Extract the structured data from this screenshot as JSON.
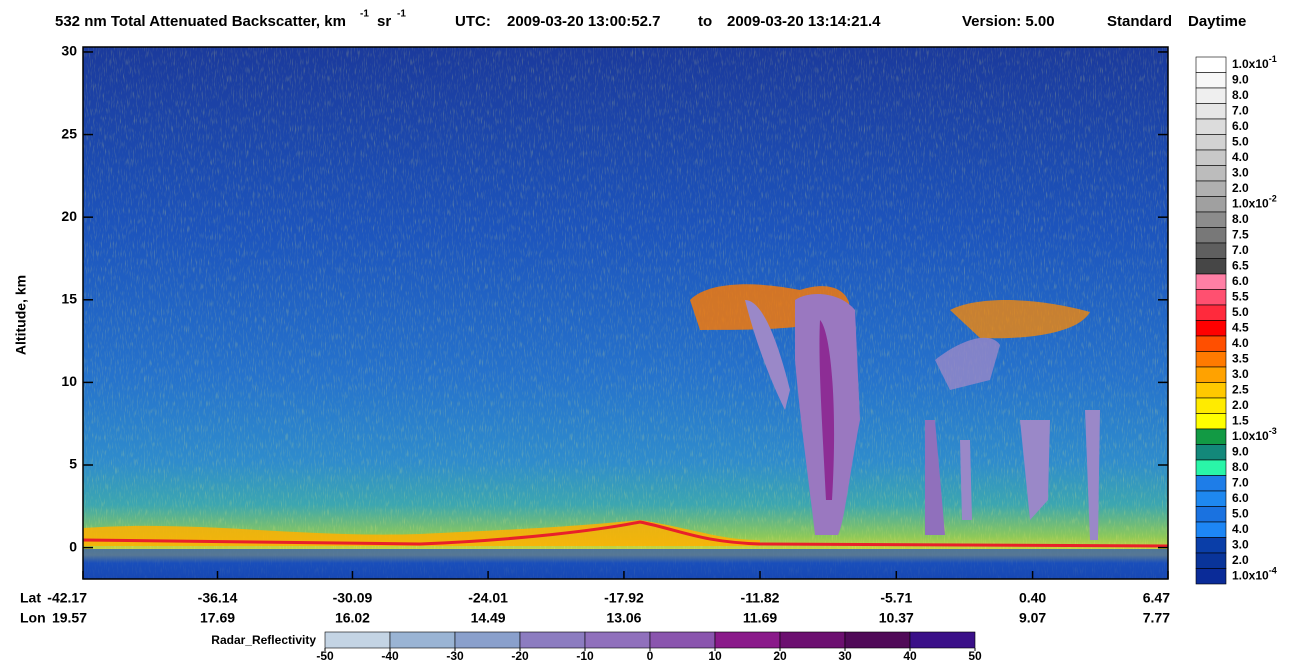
{
  "chart_data": {
    "type": "curtain",
    "title": "532 nm Total Attenuated Backscatter, km",
    "title_unit_exp": "-1",
    "title_unit2": "sr",
    "title_unit2_exp": "-1",
    "utc_label": "UTC:",
    "start_time": "2009-03-20 13:00:52.7",
    "to_label": "to",
    "end_time": "2009-03-20 13:14:21.4",
    "version": "Version: 5.00",
    "product": "Standard",
    "lighting": "Daytime",
    "y_label": "Altitude, km",
    "ylim": [
      -1.9,
      30.3
    ],
    "yticks": [
      0,
      5,
      10,
      15,
      20,
      25,
      30
    ],
    "x_row_labels": [
      "Lat",
      "Lon"
    ],
    "xlim": [
      -42.17,
      6.47
    ],
    "xticks": [
      -42.17,
      -36.14,
      -30.09,
      -24.01,
      -17.92,
      -11.82,
      -5.71,
      {
        "value": 0.4,
        "label": "0.40"
      },
      6.47
    ],
    "lon_labels": [
      19.57,
      17.69,
      16.02,
      14.49,
      13.06,
      11.69,
      10.37,
      9.07,
      7.77
    ],
    "colorbar": [
      {
        "label": "1.0x10",
        "exp": "-1",
        "color": "#ffffff"
      },
      {
        "label": "9.0",
        "color": "#f7f7f7"
      },
      {
        "label": "8.0",
        "color": "#efefef"
      },
      {
        "label": "7.0",
        "color": "#e6e6e6"
      },
      {
        "label": "6.0",
        "color": "#dcdcdc"
      },
      {
        "label": "5.0",
        "color": "#d2d2d2"
      },
      {
        "label": "4.0",
        "color": "#c8c8c8"
      },
      {
        "label": "3.0",
        "color": "#bcbcbc"
      },
      {
        "label": "2.0",
        "color": "#b0b0b0"
      },
      {
        "label": "1.0x10",
        "exp": "-2",
        "color": "#a0a0a0"
      },
      {
        "label": "8.0",
        "color": "#8c8c8c"
      },
      {
        "label": "7.5",
        "color": "#787878"
      },
      {
        "label": "7.0",
        "color": "#5f5f5f"
      },
      {
        "label": "6.5",
        "color": "#464646"
      },
      {
        "label": "6.0",
        "color": "#ff7fa5"
      },
      {
        "label": "5.5",
        "color": "#ff5070"
      },
      {
        "label": "5.0",
        "color": "#ff2a3c"
      },
      {
        "label": "4.5",
        "color": "#ff0000"
      },
      {
        "label": "4.0",
        "color": "#ff4f00"
      },
      {
        "label": "3.5",
        "color": "#ff7a00"
      },
      {
        "label": "3.0",
        "color": "#ffa200"
      },
      {
        "label": "2.5",
        "color": "#ffc800"
      },
      {
        "label": "2.0",
        "color": "#ffeb00"
      },
      {
        "label": "1.5",
        "color": "#ffff00"
      },
      {
        "label": "1.0x10",
        "exp": "-3",
        "color": "#129a44"
      },
      {
        "label": "9.0",
        "color": "#13887a"
      },
      {
        "label": "8.0",
        "color": "#2af5a8"
      },
      {
        "label": "7.0",
        "color": "#1e7de8"
      },
      {
        "label": "6.0",
        "color": "#1e88f0"
      },
      {
        "label": "5.0",
        "color": "#1a72e0"
      },
      {
        "label": "4.0",
        "color": "#1d86f5"
      },
      {
        "label": "3.0",
        "color": "#0a3ea8"
      },
      {
        "label": "2.0",
        "color": "#09349a"
      },
      {
        "label": "1.0x10",
        "exp": "-4",
        "color": "#0a2b98"
      }
    ],
    "radar_colorbar": {
      "label": "Radar_Reflectivity",
      "lim": [
        -50,
        50
      ],
      "ticks": [
        -50,
        -40,
        -30,
        -20,
        -10,
        0,
        10,
        20,
        30,
        40,
        50
      ],
      "colors": [
        "#c4d4e4",
        "#9ab4d4",
        "#8aa0cc",
        "#8c7cc0",
        "#9070bc",
        "#8a55ae",
        "#8a1a8a",
        "#6c1070",
        "#500a58",
        "#3a1088"
      ]
    }
  }
}
